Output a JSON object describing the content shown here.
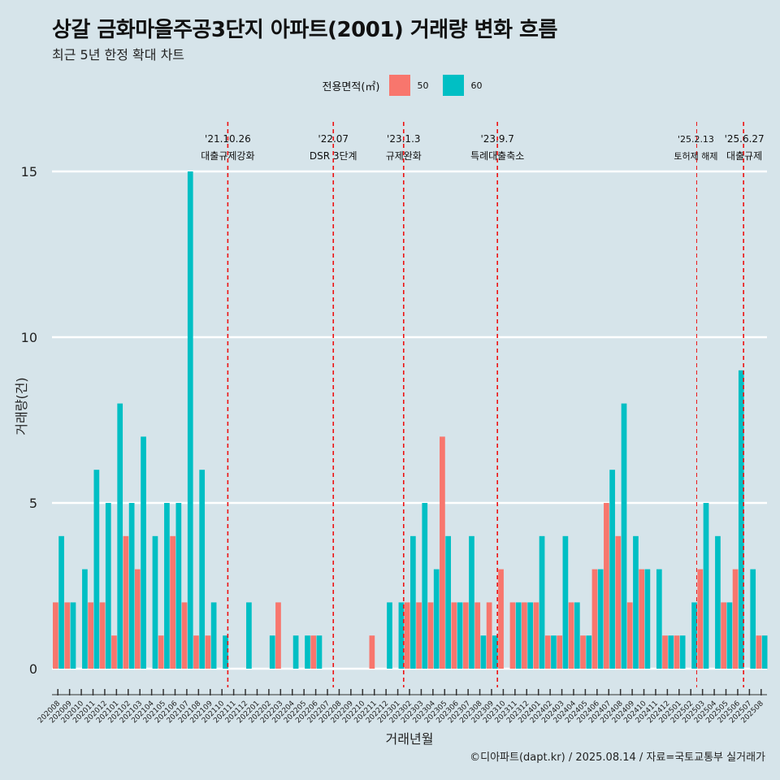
{
  "title": "상갈 금화마을주공3단지 아파트(2001) 거래량 변화 흐름",
  "subtitle": "최근 5년 한정 확대 차트",
  "caption": "©디아파트(dapt.kr) / 2025.08.14 / 자료=국토교통부 실거래가",
  "legend": {
    "title": "전용면적(㎡)",
    "items": [
      {
        "label": "50",
        "color": "#f8766d"
      },
      {
        "label": "60",
        "color": "#00bfc4"
      }
    ]
  },
  "chart_data": {
    "type": "bar",
    "xlabel": "거래년월",
    "ylabel": "거래량(건)",
    "ylim": [
      0,
      15
    ],
    "yticks": [
      0,
      5,
      10,
      15
    ],
    "categories": [
      "202008",
      "202009",
      "202010",
      "202011",
      "202012",
      "202101",
      "202102",
      "202103",
      "202104",
      "202105",
      "202106",
      "202107",
      "202108",
      "202109",
      "202110",
      "202111",
      "202112",
      "202201",
      "202202",
      "202203",
      "202204",
      "202205",
      "202206",
      "202207",
      "202208",
      "202209",
      "202210",
      "202211",
      "202212",
      "202301",
      "202302",
      "202303",
      "202304",
      "202305",
      "202306",
      "202307",
      "202308",
      "202309",
      "202310",
      "202311",
      "202312",
      "202401",
      "202402",
      "202403",
      "202404",
      "202405",
      "202406",
      "202407",
      "202408",
      "202409",
      "202410",
      "202411",
      "202412",
      "202501",
      "202502",
      "202503",
      "202504",
      "202505",
      "202506",
      "202507",
      "202508"
    ],
    "series": [
      {
        "name": "50",
        "color": "#f8766d",
        "values": [
          2,
          2,
          0,
          2,
          2,
          1,
          4,
          3,
          0,
          1,
          4,
          2,
          1,
          1,
          0,
          0,
          0,
          0,
          0,
          2,
          0,
          0,
          1,
          0,
          0,
          0,
          0,
          1,
          0,
          0,
          2,
          2,
          2,
          7,
          2,
          2,
          2,
          2,
          3,
          2,
          2,
          2,
          1,
          1,
          2,
          1,
          3,
          5,
          4,
          2,
          3,
          0,
          1,
          1,
          0,
          3,
          0,
          2,
          3,
          0,
          1
        ]
      },
      {
        "name": "60",
        "color": "#00bfc4",
        "values": [
          4,
          2,
          3,
          6,
          5,
          8,
          5,
          7,
          4,
          5,
          5,
          15,
          6,
          2,
          1,
          0,
          2,
          0,
          1,
          0,
          1,
          1,
          1,
          0,
          0,
          0,
          0,
          0,
          2,
          2,
          4,
          5,
          3,
          4,
          2,
          4,
          1,
          1,
          0,
          2,
          2,
          4,
          1,
          4,
          2,
          1,
          3,
          6,
          8,
          4,
          3,
          3,
          1,
          1,
          2,
          5,
          4,
          2,
          9,
          3,
          1
        ]
      }
    ],
    "events": [
      {
        "date": "'21.10.26",
        "label": "대출규제강화",
        "after": "202110"
      },
      {
        "date": "'22.07",
        "label": "DSR 3단계",
        "after": "202207"
      },
      {
        "date": "'23.1.3",
        "label": "규제완화",
        "after": "202301"
      },
      {
        "date": "'23.9.7",
        "label": "특례대출축소",
        "after": "202309"
      },
      {
        "date": "'25.2.13",
        "label": "토허제 해제",
        "after": "202502"
      },
      {
        "date": "'25.6.27",
        "label": "대출규제",
        "after": "202506"
      }
    ]
  }
}
